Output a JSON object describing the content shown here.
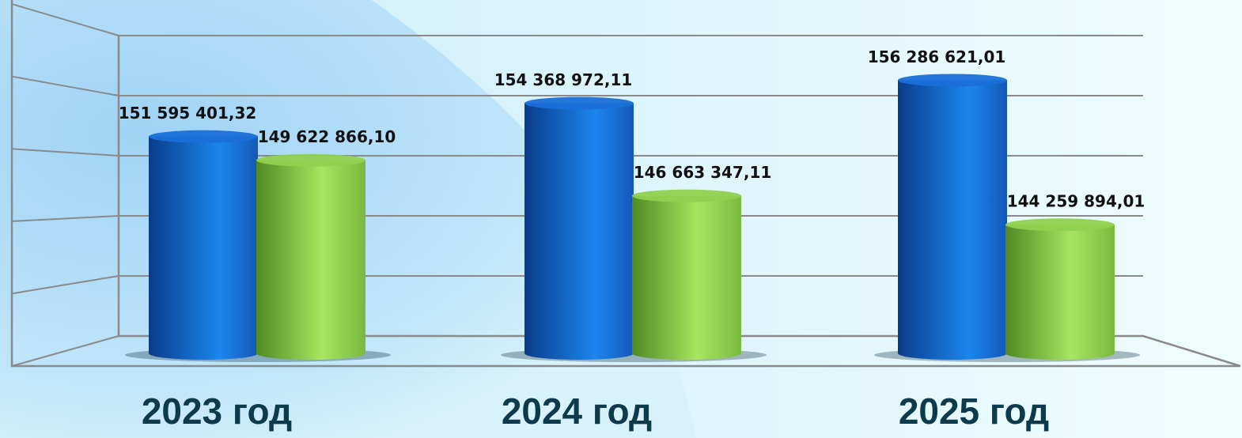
{
  "chart_data": {
    "type": "bar",
    "categories": [
      "2023 год",
      "2024 год",
      "2025 год"
    ],
    "series": [
      {
        "color": "#1a6fd8",
        "values": [
          151595401.32,
          154368972.11,
          156286621.01
        ],
        "value_labels": [
          "151 595 401,32",
          "154 368 972,11",
          "156 286 621,01"
        ]
      },
      {
        "color": "#8fd14f",
        "values": [
          149622866.1,
          146663347.11,
          144259894.01
        ],
        "value_labels": [
          "149 622 866,10",
          "146 663 347,11",
          "144 259 894,01"
        ]
      }
    ],
    "ylim": [
      135000000,
      160000000
    ],
    "yticks": [
      135000000,
      140000000,
      145000000,
      150000000,
      155000000,
      160000000
    ],
    "grid": true
  }
}
